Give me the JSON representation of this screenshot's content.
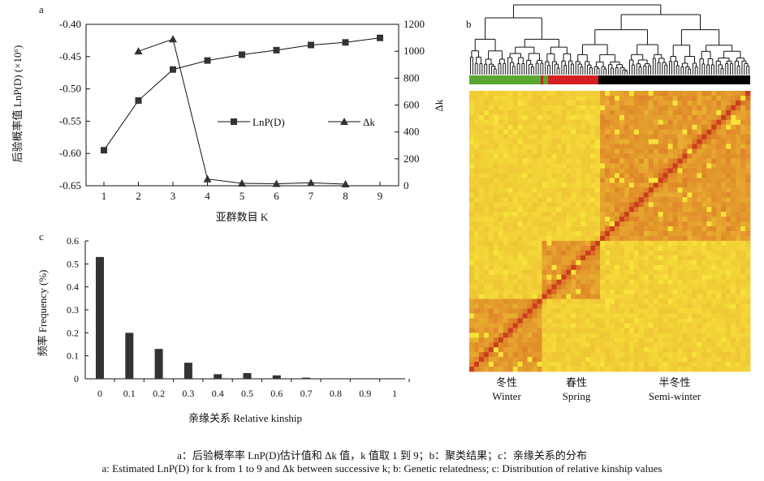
{
  "chart_data": [
    {
      "type": "line",
      "panel_label": "a",
      "x": [
        1,
        2,
        3,
        4,
        5,
        6,
        7,
        8,
        9
      ],
      "xlabel": "亚群数目 K",
      "ylabel": "后验概率值 LnP(D) (×10⁶)",
      "y2label": "Δk",
      "ylim": [
        -0.65,
        -0.4
      ],
      "yticks": [
        "-0.40",
        "-0.45",
        "-0.50",
        "-0.55",
        "-0.60",
        "-0.65"
      ],
      "y2lim": [
        0,
        1200
      ],
      "y2ticks": [
        "1200",
        "1000",
        "800",
        "600",
        "400",
        "200",
        "0"
      ],
      "series": [
        {
          "name": "LnP(D)",
          "axis": "left",
          "marker": "square",
          "x": [
            1,
            2,
            3,
            4,
            5,
            6,
            7,
            8,
            9
          ],
          "values": [
            -0.595,
            -0.518,
            -0.47,
            -0.456,
            -0.447,
            -0.44,
            -0.432,
            -0.428,
            -0.421
          ]
        },
        {
          "name": "Δk",
          "axis": "right",
          "marker": "triangle",
          "x": [
            2,
            3,
            4,
            5,
            6,
            7,
            8
          ],
          "values": [
            1000,
            1090,
            50,
            18,
            15,
            22,
            12
          ]
        }
      ]
    },
    {
      "type": "heatmap",
      "panel_label": "b",
      "groups": [
        {
          "cn": "冬性",
          "en": "Winter",
          "color": "#5aa832"
        },
        {
          "cn": "春性",
          "en": "Spring",
          "color": "#d42020"
        },
        {
          "cn": "半冬性",
          "en": "Semi-winter",
          "color": "#000000"
        }
      ],
      "has_dendrogram": true
    },
    {
      "type": "bar",
      "panel_label": "c",
      "categories": [
        "0",
        "0.1",
        "0.2",
        "0.3",
        "0.4",
        "0.5",
        "0.6",
        "0.7",
        "0.8",
        "0.9",
        "1"
      ],
      "values": [
        0.53,
        0.2,
        0.13,
        0.07,
        0.02,
        0.025,
        0.015,
        0.005,
        0,
        0,
        0
      ],
      "xlabel": "亲缘关系 Relative kinship",
      "ylabel": "频率 Frequency (%)",
      "ylim": [
        0,
        0.6
      ],
      "yticks": [
        "0",
        "0.1",
        "0.2",
        "0.3",
        "0.4",
        "0.5",
        "0.6"
      ]
    }
  ],
  "caption": {
    "cn": "a：后验概率率 LnP(D)估计值和 Δk 值，k 值取 1 到 9；b：聚类结果；c：亲缘关系的分布",
    "en": "a: Estimated LnP(D) for k from 1 to 9 and Δk between successive k; b: Genetic relatedness; c: Distribution of relative kinship values"
  },
  "colors": {
    "marker": "#333333",
    "heat_low": "#f7e33a",
    "heat_high": "#c9341a",
    "bar": "#333333"
  }
}
